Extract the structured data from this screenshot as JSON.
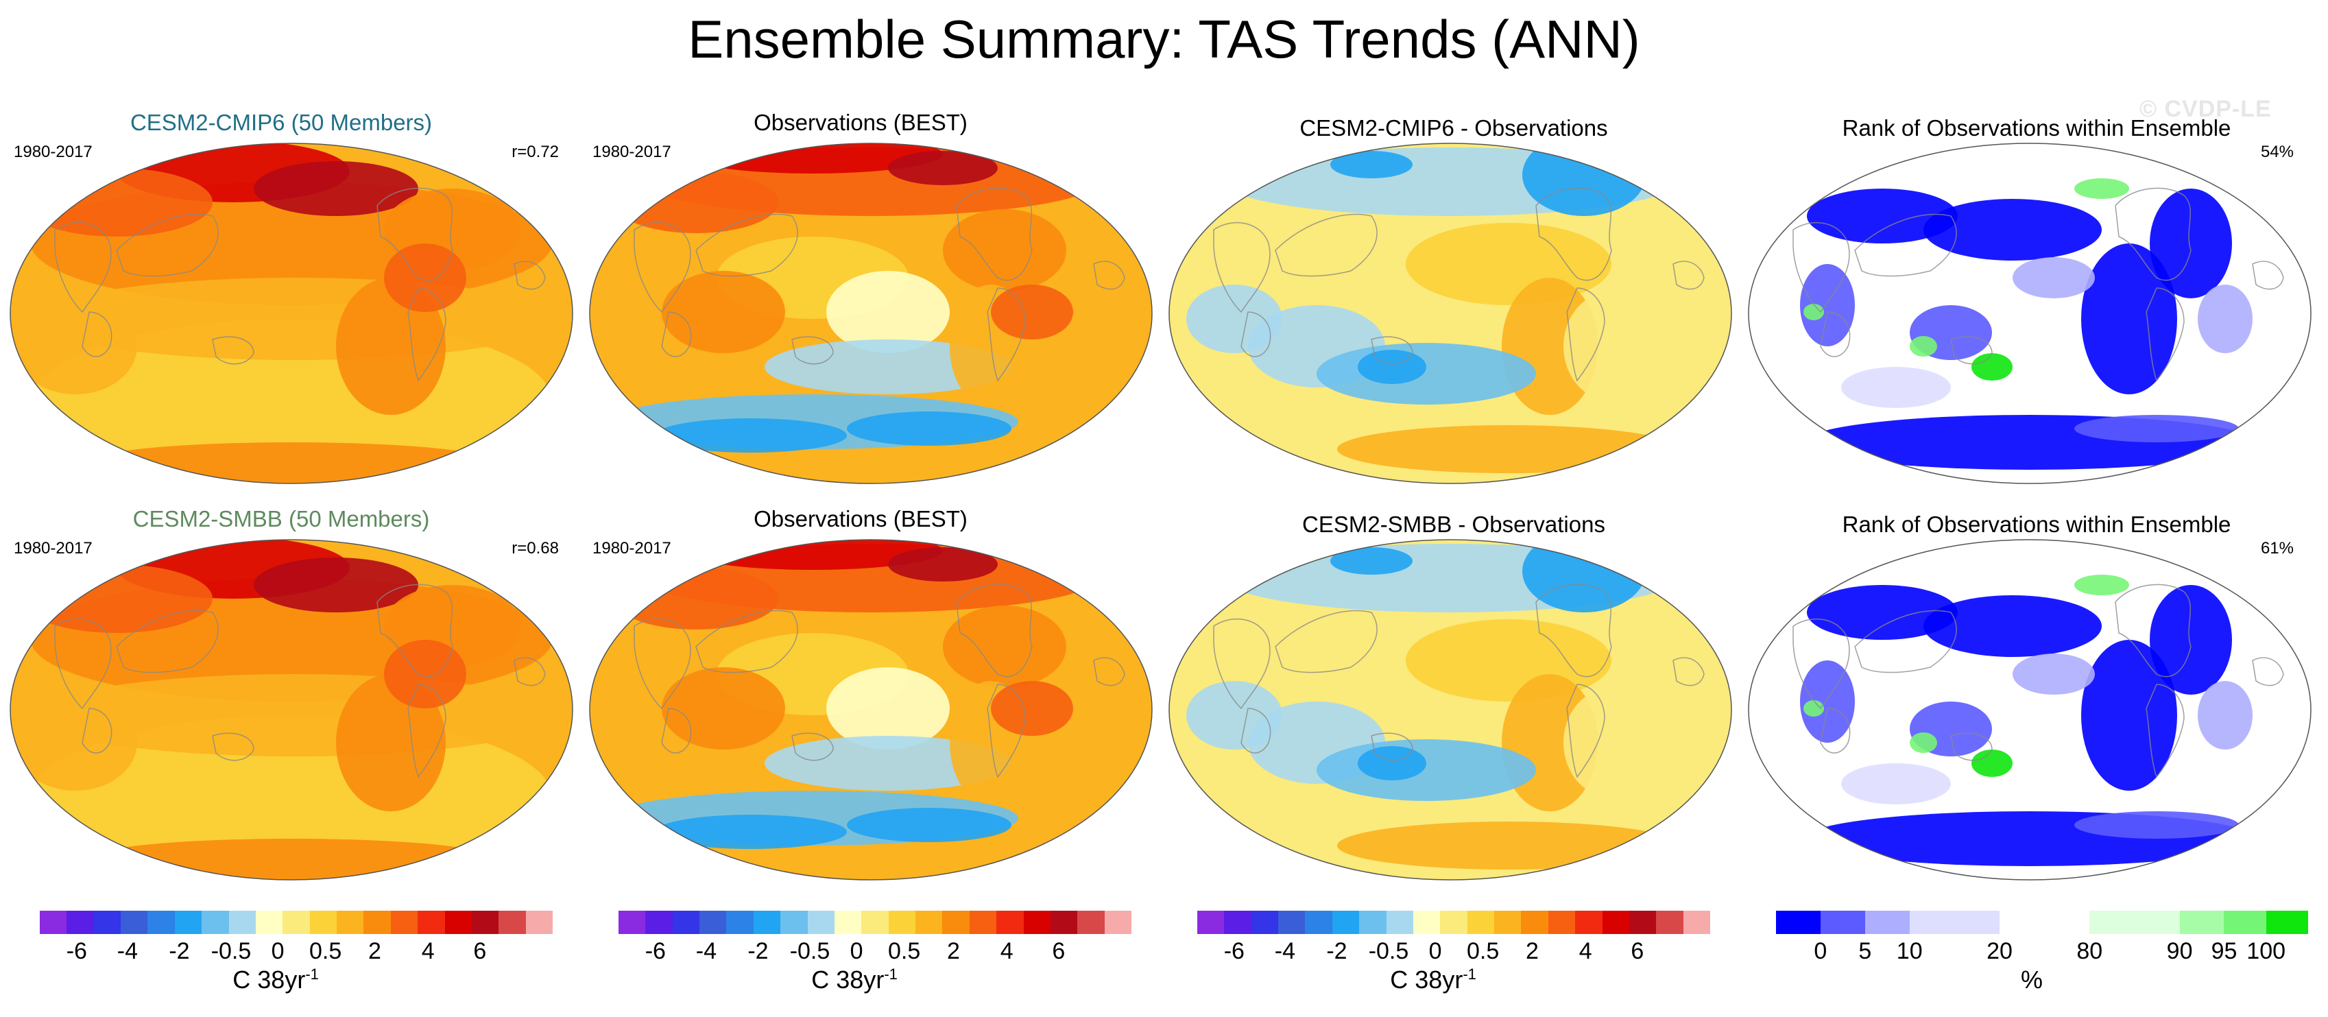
{
  "figure": {
    "title": "Ensemble Summary: TAS Trends (ANN)",
    "watermark": "© CVDP-LE"
  },
  "colors": {
    "model_cmip6_title": "#1f6f86",
    "model_smbb_title": "#5e8a5e",
    "land_outline": "#888888",
    "temperature_scale": [
      "#8a2be2",
      "#5a1ee6",
      "#3434e8",
      "#3a5ed8",
      "#2c82e6",
      "#21a4f2",
      "#6cc0ee",
      "#a8d8f0",
      "#ffffc4",
      "#fbea7c",
      "#fbd238",
      "#fbb320",
      "#f98b0d",
      "#f66010",
      "#f22a10",
      "#d90000",
      "#b20a16",
      "#d84848",
      "#f6aaaa"
    ],
    "rank_scale": [
      "#0000ff",
      "#5b5bff",
      "#aeaefe",
      "#dedeff",
      "#ffffff",
      "#ddffdd",
      "#a7fca7",
      "#75f575",
      "#0ee60e"
    ]
  },
  "panels": [
    {
      "id": "cesm2-cmip6",
      "title": "CESM2-CMIP6 (50 Members)",
      "period": "1980-2017",
      "stat": "r=0.72",
      "kind": "model"
    },
    {
      "id": "obs-best-1",
      "title": "Observations (BEST)",
      "period": "1980-2017",
      "stat": "",
      "kind": "obs"
    },
    {
      "id": "cmip6-minus-obs",
      "title": "CESM2-CMIP6 - Observations",
      "period": "",
      "stat": "",
      "kind": "diff"
    },
    {
      "id": "rank-1",
      "title": "Rank of Observations within Ensemble",
      "period": "",
      "stat": "54%",
      "kind": "rank"
    },
    {
      "id": "cesm2-smbb",
      "title": "CESM2-SMBB (50 Members)",
      "period": "1980-2017",
      "stat": "r=0.68",
      "kind": "model"
    },
    {
      "id": "obs-best-2",
      "title": "Observations (BEST)",
      "period": "1980-2017",
      "stat": "",
      "kind": "obs"
    },
    {
      "id": "smbb-minus-obs",
      "title": "CESM2-SMBB - Observations",
      "period": "",
      "stat": "",
      "kind": "diff"
    },
    {
      "id": "rank-2",
      "title": "Rank of Observations within Ensemble",
      "period": "",
      "stat": "61%",
      "kind": "rank"
    }
  ],
  "colorbars": {
    "temperature": {
      "ticks": [
        "-6",
        "-4",
        "-2",
        "-0.5",
        "0",
        "0.5",
        "2",
        "4",
        "6"
      ],
      "unit_prefix": "C 38yr",
      "unit_exp": "-1"
    },
    "rank": {
      "ticks": [
        "0",
        "5",
        "10",
        "20",
        "80",
        "90",
        "95",
        "100"
      ],
      "unit": "%"
    }
  },
  "chart_data": [
    {
      "type": "heatmap",
      "title": "CESM2-CMIP6 (50 Members)",
      "period": "1980-2017",
      "pattern_correlation": 0.72,
      "variable": "TAS trend",
      "units": "C 38yr-1",
      "levels": [
        -6,
        -4,
        -2,
        -0.5,
        0,
        0.5,
        2,
        4,
        6
      ],
      "dominant_range": [
        0.5,
        2
      ],
      "arctic_max": 4
    },
    {
      "type": "heatmap",
      "title": "Observations (BEST)",
      "period": "1980-2017",
      "variable": "TAS trend",
      "units": "C 38yr-1",
      "dominant_range": [
        0,
        2
      ],
      "arctic_max": 6
    },
    {
      "type": "heatmap",
      "title": "CESM2-CMIP6 - Observations",
      "variable": "TAS trend difference",
      "units": "C 38yr-1",
      "dominant_range": [
        -0.5,
        0.5
      ]
    },
    {
      "type": "heatmap",
      "title": "Rank of Observations within Ensemble",
      "variable": "rank",
      "units": "%",
      "summary_percent": 54,
      "levels": [
        0,
        5,
        10,
        20,
        80,
        90,
        95,
        100
      ]
    },
    {
      "type": "heatmap",
      "title": "CESM2-SMBB (50 Members)",
      "period": "1980-2017",
      "pattern_correlation": 0.68,
      "variable": "TAS trend",
      "units": "C 38yr-1",
      "dominant_range": [
        0.5,
        2
      ],
      "arctic_max": 4
    },
    {
      "type": "heatmap",
      "title": "Observations (BEST)",
      "period": "1980-2017",
      "variable": "TAS trend",
      "units": "C 38yr-1",
      "dominant_range": [
        0,
        2
      ],
      "arctic_max": 6
    },
    {
      "type": "heatmap",
      "title": "CESM2-SMBB - Observations",
      "variable": "TAS trend difference",
      "units": "C 38yr-1",
      "dominant_range": [
        -0.5,
        0.5
      ]
    },
    {
      "type": "heatmap",
      "title": "Rank of Observations within Ensemble",
      "variable": "rank",
      "units": "%",
      "summary_percent": 61,
      "levels": [
        0,
        5,
        10,
        20,
        80,
        90,
        95,
        100
      ]
    }
  ]
}
